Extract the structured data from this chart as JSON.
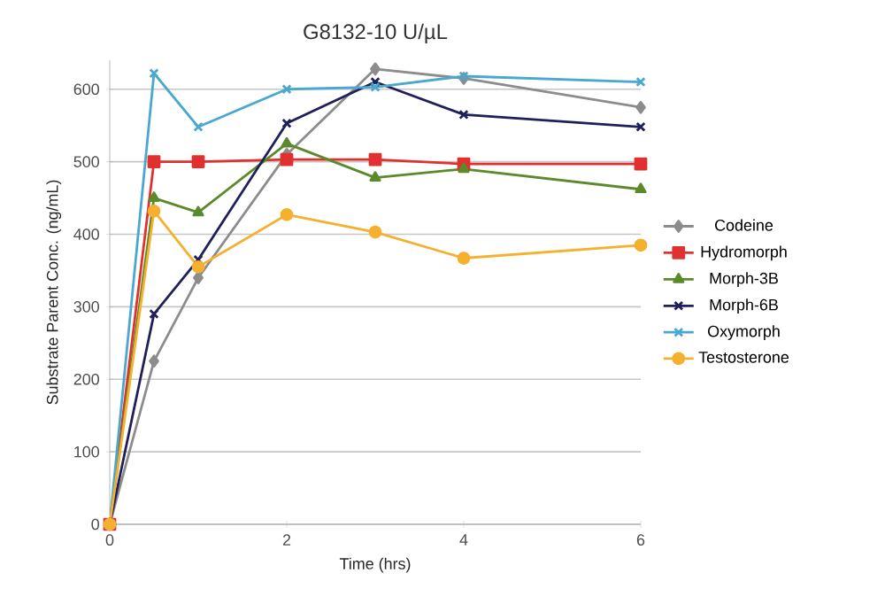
{
  "chart_data": {
    "type": "line",
    "title": "G8132-10 U/µL",
    "xlabel": "Time (hrs)",
    "ylabel": "Substrate Parent Conc. (ng/mL)",
    "x": [
      0,
      0.5,
      1,
      2,
      3,
      4,
      6
    ],
    "xlim": [
      0,
      6
    ],
    "xticks": [
      0,
      2,
      4,
      6
    ],
    "ylim": [
      0,
      640
    ],
    "yticks": [
      0,
      100,
      200,
      300,
      400,
      500,
      600
    ],
    "grid": "y",
    "legend": "right",
    "series": [
      {
        "name": "Codeine",
        "color": "#8c8c8c",
        "marker": "diamond",
        "values": [
          0,
          225,
          340,
          510,
          628,
          615,
          575
        ]
      },
      {
        "name": "Hydromorph",
        "color": "#e03030",
        "marker": "square",
        "values": [
          0,
          500,
          500,
          503,
          503,
          497,
          497
        ]
      },
      {
        "name": "Morph-3B",
        "color": "#5a8a2a",
        "marker": "triangle",
        "values": [
          0,
          450,
          430,
          525,
          478,
          490,
          462
        ]
      },
      {
        "name": "Morph-6B",
        "color": "#1f1f5a",
        "marker": "cross",
        "values": [
          0,
          290,
          365,
          553,
          610,
          565,
          548
        ]
      },
      {
        "name": "Oxymorph",
        "color": "#4aa8d0",
        "marker": "cross",
        "values": [
          0,
          622,
          548,
          600,
          603,
          618,
          610
        ]
      },
      {
        "name": "Testosterone",
        "color": "#f5b030",
        "marker": "circle",
        "values": [
          0,
          432,
          355,
          427,
          403,
          367,
          385
        ]
      }
    ]
  }
}
